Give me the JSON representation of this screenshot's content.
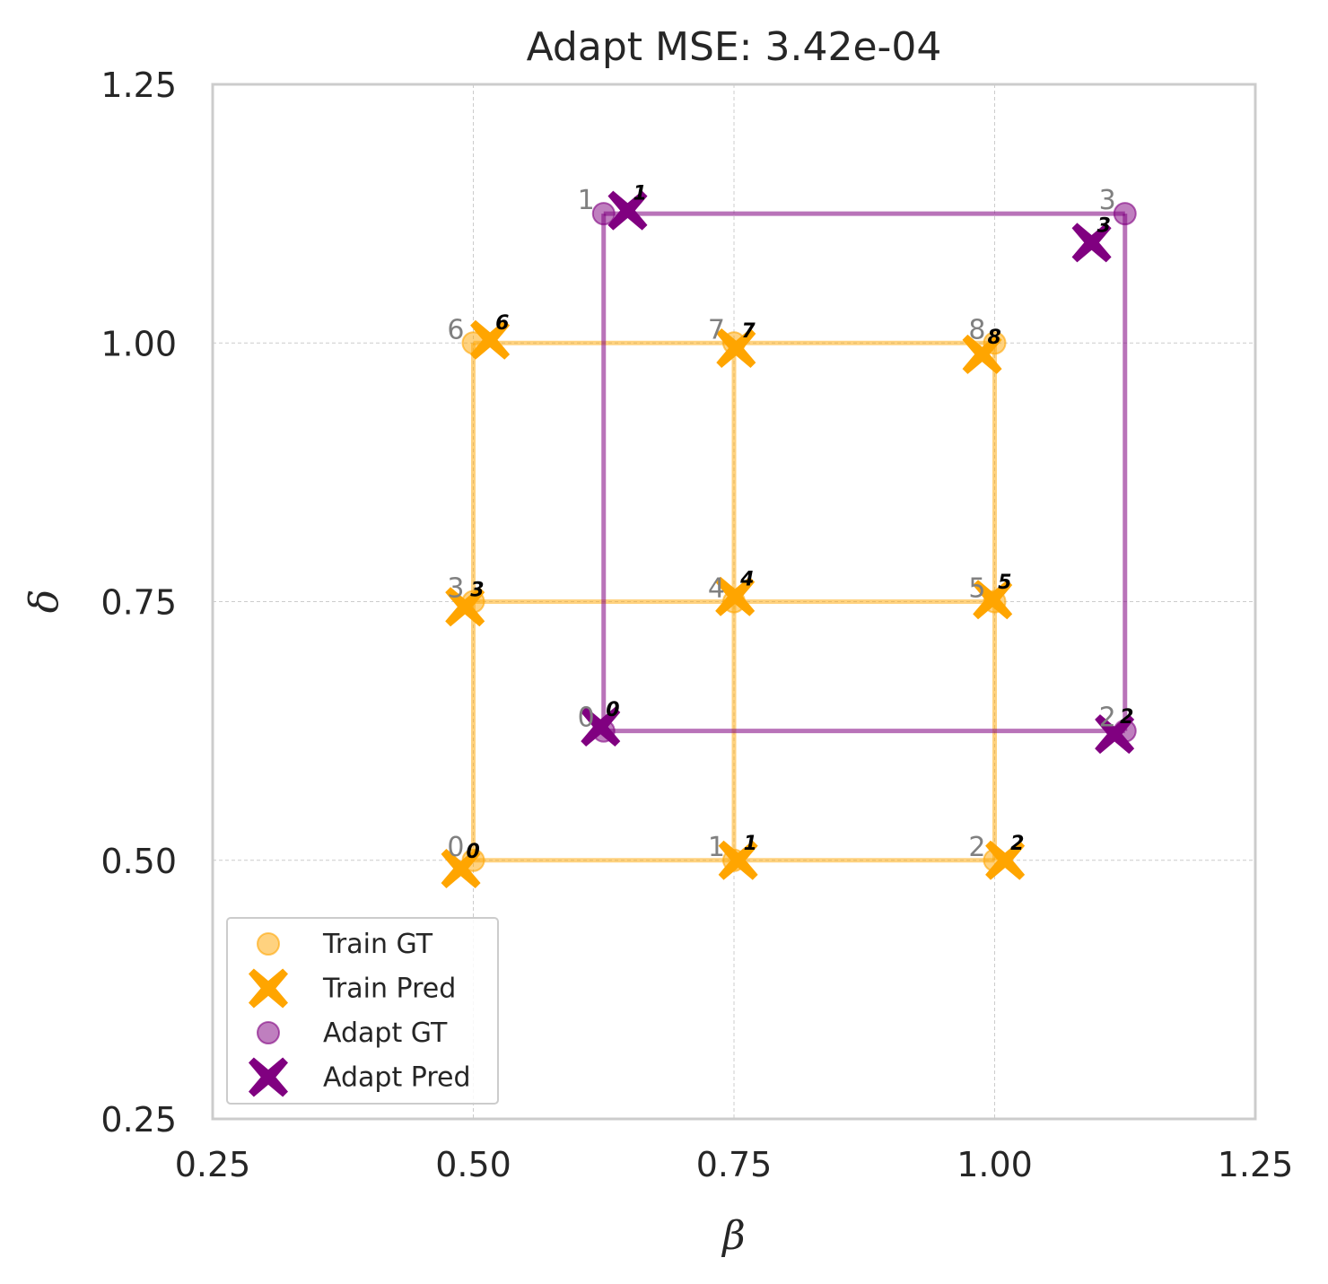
{
  "chart_data": {
    "type": "scatter",
    "title": "Adapt MSE: 3.42e-04",
    "xlabel": "β",
    "ylabel": "δ",
    "xlim": [
      0.25,
      1.25
    ],
    "ylim": [
      0.25,
      1.25
    ],
    "xticks": [
      0.25,
      0.5,
      0.75,
      1.0,
      1.25
    ],
    "yticks": [
      0.25,
      0.5,
      0.75,
      1.0,
      1.25
    ],
    "xtick_labels": [
      "0.25",
      "0.50",
      "0.75",
      "1.00",
      "1.25"
    ],
    "ytick_labels": [
      "0.25",
      "0.50",
      "0.75",
      "1.00",
      "1.25"
    ],
    "grid": true,
    "legend_position": "lower-left",
    "series": [
      {
        "name": "Train GT",
        "marker": "circle",
        "color": "#FFA500",
        "points": [
          {
            "label": "0",
            "x": 0.5,
            "y": 0.5
          },
          {
            "label": "1",
            "x": 0.75,
            "y": 0.5
          },
          {
            "label": "2",
            "x": 1.0,
            "y": 0.5
          },
          {
            "label": "3",
            "x": 0.5,
            "y": 0.75
          },
          {
            "label": "4",
            "x": 0.75,
            "y": 0.75
          },
          {
            "label": "5",
            "x": 1.0,
            "y": 0.75
          },
          {
            "label": "6",
            "x": 0.5,
            "y": 1.0
          },
          {
            "label": "7",
            "x": 0.75,
            "y": 1.0
          },
          {
            "label": "8",
            "x": 1.0,
            "y": 1.0
          }
        ]
      },
      {
        "name": "Train Pred",
        "marker": "x",
        "color": "#FFA500",
        "points": [
          {
            "label": "0",
            "x": 0.488,
            "y": 0.492
          },
          {
            "label": "1",
            "x": 0.754,
            "y": 0.5
          },
          {
            "label": "2",
            "x": 1.01,
            "y": 0.5
          },
          {
            "label": "3",
            "x": 0.492,
            "y": 0.745
          },
          {
            "label": "4",
            "x": 0.751,
            "y": 0.755
          },
          {
            "label": "5",
            "x": 0.998,
            "y": 0.752
          },
          {
            "label": "6",
            "x": 0.516,
            "y": 1.003
          },
          {
            "label": "7",
            "x": 0.752,
            "y": 0.995
          },
          {
            "label": "8",
            "x": 0.988,
            "y": 0.989
          }
        ]
      },
      {
        "name": "Adapt GT",
        "marker": "circle",
        "color": "#800080",
        "points": [
          {
            "label": "0",
            "x": 0.625,
            "y": 0.625
          },
          {
            "label": "1",
            "x": 0.625,
            "y": 1.125
          },
          {
            "label": "2",
            "x": 1.125,
            "y": 0.625
          },
          {
            "label": "3",
            "x": 1.125,
            "y": 1.125
          }
        ]
      },
      {
        "name": "Adapt Pred",
        "marker": "x",
        "color": "#800080",
        "points": [
          {
            "label": "0",
            "x": 0.622,
            "y": 0.629
          },
          {
            "label": "1",
            "x": 0.648,
            "y": 1.128
          },
          {
            "label": "2",
            "x": 1.115,
            "y": 0.622
          },
          {
            "label": "3",
            "x": 1.093,
            "y": 1.097
          }
        ]
      }
    ],
    "grid_lines": [
      {
        "color": "#FFA500",
        "points": [
          [
            0.5,
            0.5
          ],
          [
            0.75,
            0.5
          ],
          [
            1.0,
            0.5
          ]
        ]
      },
      {
        "color": "#FFA500",
        "points": [
          [
            0.5,
            0.75
          ],
          [
            0.75,
            0.75
          ],
          [
            1.0,
            0.75
          ]
        ]
      },
      {
        "color": "#FFA500",
        "points": [
          [
            0.5,
            1.0
          ],
          [
            0.75,
            1.0
          ],
          [
            1.0,
            1.0
          ]
        ]
      },
      {
        "color": "#FFA500",
        "points": [
          [
            0.5,
            0.5
          ],
          [
            0.5,
            0.75
          ],
          [
            0.5,
            1.0
          ]
        ]
      },
      {
        "color": "#FFA500",
        "points": [
          [
            0.75,
            0.5
          ],
          [
            0.75,
            0.75
          ],
          [
            0.75,
            1.0
          ]
        ]
      },
      {
        "color": "#FFA500",
        "points": [
          [
            1.0,
            0.5
          ],
          [
            1.0,
            0.75
          ],
          [
            1.0,
            1.0
          ]
        ]
      },
      {
        "color": "#800080",
        "points": [
          [
            0.625,
            0.625
          ],
          [
            1.125,
            0.625
          ]
        ]
      },
      {
        "color": "#800080",
        "points": [
          [
            0.625,
            1.125
          ],
          [
            1.125,
            1.125
          ]
        ]
      },
      {
        "color": "#800080",
        "points": [
          [
            0.625,
            0.625
          ],
          [
            0.625,
            1.125
          ]
        ]
      },
      {
        "color": "#800080",
        "points": [
          [
            1.125,
            0.625
          ],
          [
            1.125,
            1.125
          ]
        ]
      }
    ]
  }
}
